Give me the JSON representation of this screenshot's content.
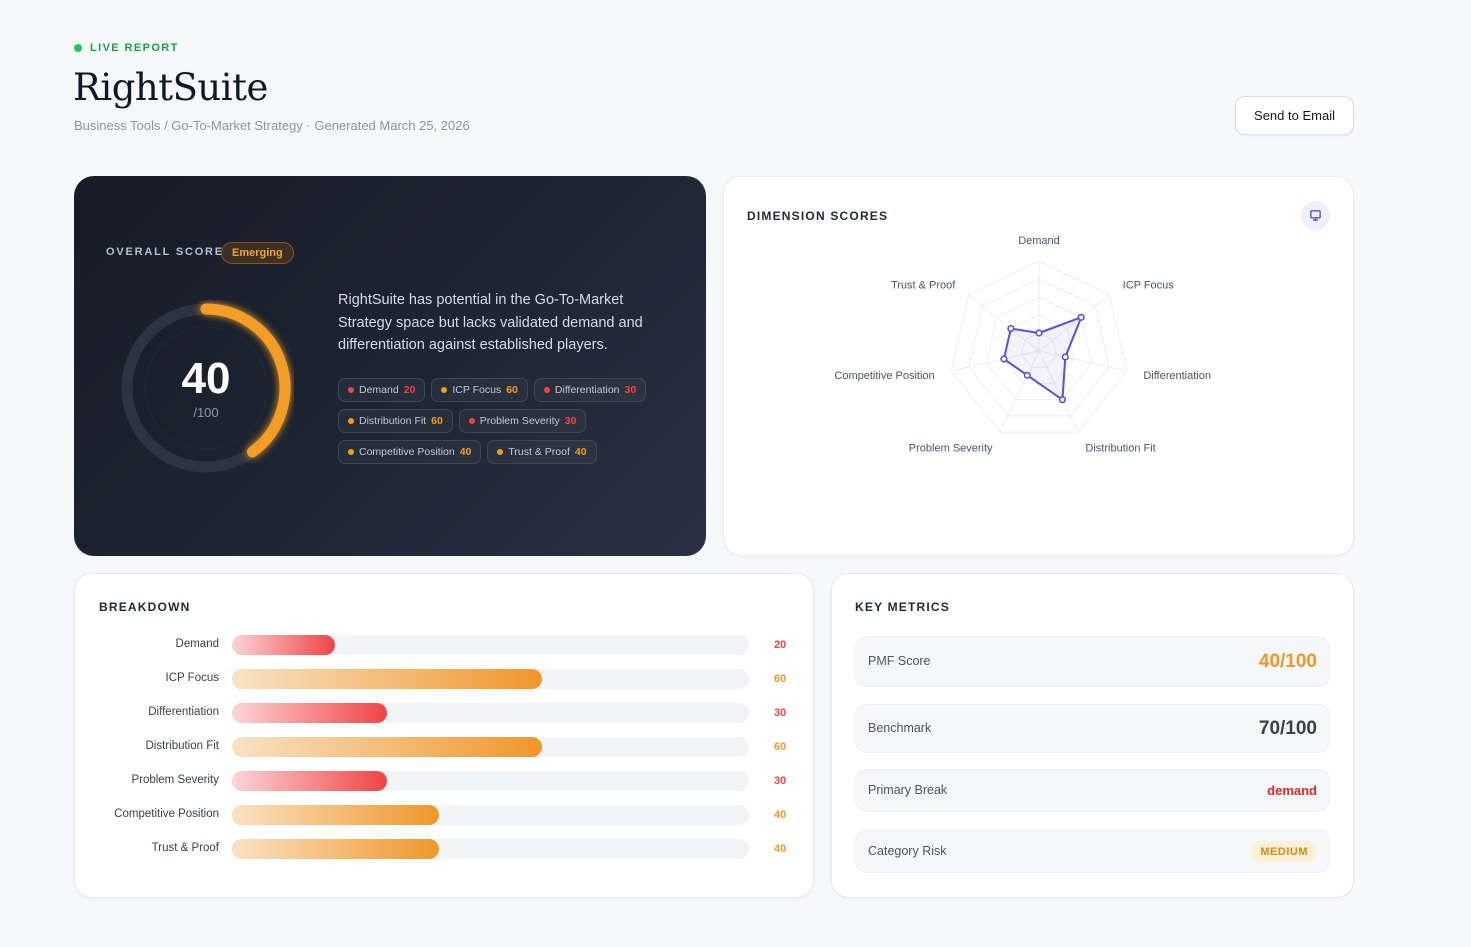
{
  "header": {
    "live_label": "LIVE REPORT",
    "title": "RightSuite",
    "breadcrumb": "Business Tools / Go-To-Market Strategy · Generated March 25, 2026",
    "email_button": "Send to Email"
  },
  "overall": {
    "label": "OVERALL SCORE",
    "badge": "Emerging",
    "score": "40",
    "denominator": "/100",
    "score_value": 40,
    "score_max": 100,
    "description": "RightSuite has potential in the Go-To-Market Strategy space but lacks validated demand and differentiation against established players.",
    "chips": [
      {
        "label": "Demand",
        "value": "20",
        "color": "#ef4444"
      },
      {
        "label": "ICP Focus",
        "value": "60",
        "color": "#f59e0b"
      },
      {
        "label": "Differentiation",
        "value": "30",
        "color": "#ef4444"
      },
      {
        "label": "Distribution Fit",
        "value": "60",
        "color": "#f59e0b"
      },
      {
        "label": "Problem Severity",
        "value": "30",
        "color": "#ef4444"
      },
      {
        "label": "Competitive Position",
        "value": "40",
        "color": "#f59e0b"
      },
      {
        "label": "Trust & Proof",
        "value": "40",
        "color": "#f59e0b"
      }
    ]
  },
  "dimensions": {
    "title": "DIMENSION SCORES",
    "icon": "monitor-icon"
  },
  "chart_data": {
    "type": "radar",
    "categories": [
      "Demand",
      "ICP Focus",
      "Differentiation",
      "Distribution Fit",
      "Problem Severity",
      "Competitive Position",
      "Trust & Proof"
    ],
    "values": [
      20,
      60,
      30,
      60,
      30,
      40,
      40
    ],
    "range": [
      0,
      100
    ],
    "grid": true
  },
  "breakdown": {
    "title": "BREAKDOWN",
    "max": 100,
    "items": [
      {
        "label": "Demand",
        "value": "20",
        "score": 20,
        "level": "low"
      },
      {
        "label": "ICP Focus",
        "value": "60",
        "score": 60,
        "level": "mid"
      },
      {
        "label": "Differentiation",
        "value": "30",
        "score": 30,
        "level": "low"
      },
      {
        "label": "Distribution Fit",
        "value": "60",
        "score": 60,
        "level": "mid"
      },
      {
        "label": "Problem Severity",
        "value": "30",
        "score": 30,
        "level": "low"
      },
      {
        "label": "Competitive Position",
        "value": "40",
        "score": 40,
        "level": "mid"
      },
      {
        "label": "Trust & Proof",
        "value": "40",
        "score": 40,
        "level": "mid"
      }
    ]
  },
  "metrics": {
    "title": "KEY METRICS",
    "pmf": {
      "label": "PMF Score",
      "value": "40/100",
      "color": "#f0962a"
    },
    "benchmark": {
      "label": "Benchmark",
      "value": "70/100",
      "color": "#374151"
    },
    "primary_break": {
      "label": "Primary Break",
      "value": "demand",
      "color": "#dc2626"
    },
    "category_risk": {
      "label": "Category Risk",
      "value": "MEDIUM"
    }
  },
  "colors": {
    "low": "#ef4444",
    "mid": "#f0962a",
    "accent": "#5b4ee0"
  }
}
